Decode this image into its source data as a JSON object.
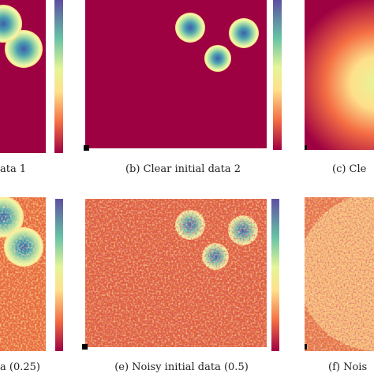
{
  "captions": [
    "ata 1",
    "(b) Clear initial data 2",
    "(c) Cle",
    "a (0.25)",
    "(e) Noisy initial data (0.5)",
    "(f) Nois"
  ]
}
